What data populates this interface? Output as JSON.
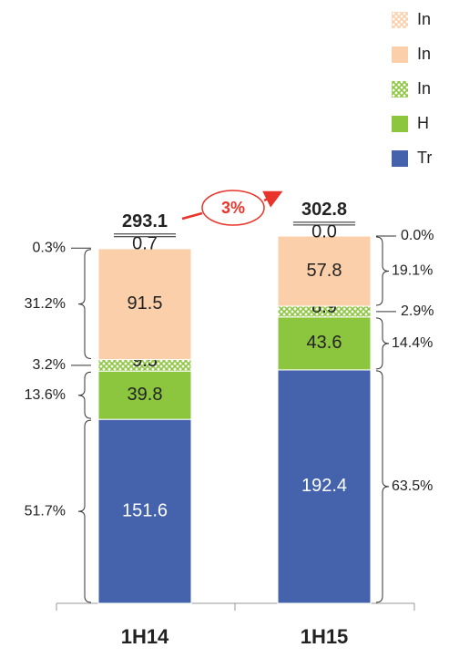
{
  "chart_data": {
    "type": "stacked_bar",
    "categories": [
      "1H14",
      "1H15"
    ],
    "series": [
      {
        "name": "Tr",
        "color": "#4563ad",
        "pattern": false,
        "values": [
          151.6,
          192.4
        ],
        "value_labels": [
          "151.6",
          "192.4"
        ],
        "share_labels": [
          "51.7%",
          "63.5%"
        ]
      },
      {
        "name": "H",
        "color": "#8cc63f",
        "pattern": false,
        "values": [
          39.8,
          43.6
        ],
        "value_labels": [
          "39.8",
          "43.6"
        ],
        "share_labels": [
          "13.6%",
          "14.4%"
        ]
      },
      {
        "name": "In",
        "color": "#8cc63f",
        "pattern": true,
        "values": [
          9.5,
          8.9
        ],
        "value_labels": [
          "9.5",
          "8.9"
        ],
        "share_labels": [
          "3.2%",
          "2.9%"
        ]
      },
      {
        "name": "In",
        "color": "#fbcfaa",
        "pattern": false,
        "values": [
          91.5,
          57.8
        ],
        "value_labels": [
          "91.5",
          "57.8"
        ],
        "share_labels": [
          "31.2%",
          "19.1%"
        ]
      },
      {
        "name": "In",
        "color": "#fbcfaa",
        "pattern": true,
        "values": [
          0.7,
          0.0
        ],
        "value_labels": [
          "0.7",
          "0.0"
        ],
        "share_labels": [
          "0.3%",
          "0.0%"
        ]
      }
    ],
    "totals": [
      293.1,
      302.8
    ],
    "growth_label": "3%",
    "ylim": [
      0,
      320
    ]
  }
}
